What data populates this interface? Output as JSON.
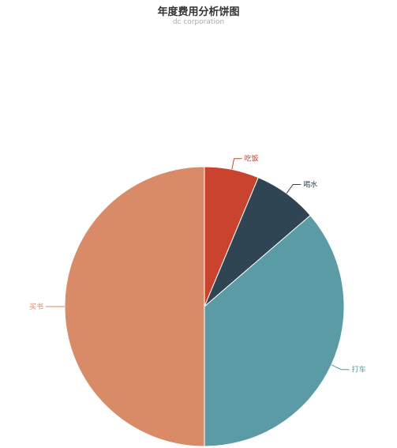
{
  "title": "年度费用分析饼图",
  "subtitle": "dc corporation",
  "chart_data": {
    "type": "pie",
    "title": "年度费用分析饼图",
    "subtitle": "dc corporation",
    "slices": [
      {
        "name": "吃饭",
        "value": 6.3,
        "color": "#c9432e"
      },
      {
        "name": "喝水",
        "value": 7.4,
        "color": "#2f4553"
      },
      {
        "name": "打车",
        "value": 36.3,
        "color": "#5b9ba5"
      },
      {
        "name": "买书",
        "value": 50.0,
        "color": "#d98a66"
      }
    ],
    "start_angle_deg": 0,
    "direction": "clockwise",
    "legend": "none"
  }
}
